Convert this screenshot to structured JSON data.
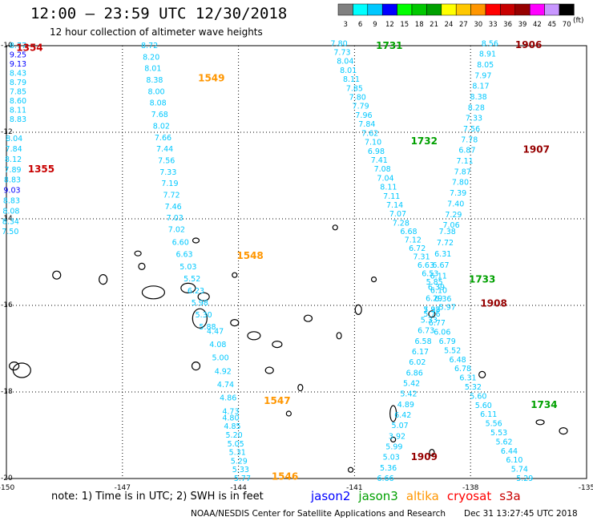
{
  "header": {
    "title": "12:00 – 23:59 UTC 12/30/2018",
    "subtitle": "12 hour collection of altimeter wave heights"
  },
  "color_scale": {
    "ticks": [
      "3",
      "6",
      "9",
      "12",
      "15",
      "18",
      "21",
      "24",
      "27",
      "30",
      "33",
      "36",
      "39",
      "42",
      "45",
      "70"
    ],
    "unit": "(ft)",
    "colors": [
      "#808080",
      "#00ffff",
      "#00c8ff",
      "#0000ff",
      "#00ff00",
      "#00c800",
      "#00a000",
      "#ffff00",
      "#ffc800",
      "#ff9600",
      "#ff0000",
      "#c80000",
      "#960000",
      "#ff00ff",
      "#c896ff",
      "#000000"
    ]
  },
  "map": {
    "lon_labels": [
      "-150",
      "-147",
      "-144",
      "-141",
      "-138",
      "-135"
    ],
    "lat_labels": [
      "-10",
      "-12",
      "-14",
      "-16",
      "-18",
      "-20"
    ],
    "lon_values": [
      -150,
      -147,
      -144,
      -141,
      -138,
      -135
    ],
    "lat_values": [
      -10,
      -12,
      -14,
      -16,
      -18,
      -20
    ]
  },
  "tracks": [
    {
      "satellite": "cryosat",
      "color": "#c80000",
      "time_label": "1354",
      "label_pos": [
        -149.4,
        -10.05
      ],
      "start": [
        -149.7,
        -10.0
      ],
      "end": [
        -149.7,
        -11.7
      ],
      "values": [
        "8.77",
        "9.25",
        "9.13",
        "8.43",
        "8.79",
        "7.85",
        "8.60",
        "8.11",
        "8.83"
      ],
      "value_colors": [
        "#00c8ff",
        "#0000ff",
        "#0000ff",
        "#00c8ff",
        "#00c8ff",
        "#00c8ff",
        "#00c8ff",
        "#00c8ff",
        "#00c8ff"
      ]
    },
    {
      "satellite": "cryosat",
      "color": "#c80000",
      "time_label": "1355",
      "label_pos": [
        -149.1,
        -12.85
      ],
      "start": [
        -149.8,
        -12.15
      ],
      "end": [
        -149.9,
        -14.3
      ],
      "values": [
        "8.04",
        "7.84",
        "8.12",
        "7.89",
        "8.83",
        "9.03",
        "8.83",
        "8.08",
        "8.34",
        "7.50"
      ],
      "value_colors": [
        "#00c8ff",
        "#00c8ff",
        "#00c8ff",
        "#00c8ff",
        "#00c8ff",
        "#0000ff",
        "#00c8ff",
        "#00c8ff",
        "#00c8ff",
        "#00c8ff"
      ]
    },
    {
      "satellite": "altika",
      "color": "#ff9600",
      "time_label": "1549",
      "label_pos": [
        -144.7,
        -10.75
      ],
      "start": [
        -146.3,
        -10.0
      ],
      "end": [
        -145.6,
        -14.25
      ],
      "values": [
        "8.72",
        "8.20",
        "8.01",
        "8.38",
        "8.00",
        "8.08",
        "7.68",
        "8.02",
        "7.66",
        "7.44",
        "7.56",
        "7.33",
        "7.19",
        "7.72",
        "7.46",
        "7.03",
        "7.02"
      ],
      "value_colors": []
    },
    {
      "satellite": "altika",
      "color": "#ff9600",
      "time_label": "1548",
      "label_pos": [
        -143.7,
        -14.85
      ],
      "start": [
        -145.5,
        -14.55
      ],
      "end": [
        -144.8,
        -16.5
      ],
      "values": [
        "6.60",
        "6.63",
        "5.03",
        "5.52",
        "6.23",
        "5.98",
        "5.30",
        "5.88"
      ],
      "value_colors": []
    },
    {
      "satellite": "altika",
      "color": "#ff9600",
      "time_label": "1547",
      "label_pos": [
        -143.0,
        -18.2
      ],
      "start": [
        -144.6,
        -16.6
      ],
      "end": [
        -144.2,
        -18.45
      ],
      "values": [
        "4.47",
        "4.08",
        "5.00",
        "4.92",
        "4.74",
        "4.86",
        "4.73"
      ],
      "value_colors": []
    },
    {
      "satellite": "altika",
      "color": "#ff9600",
      "time_label": "1546",
      "label_pos": [
        -142.8,
        -19.95
      ],
      "start": [
        -144.2,
        -18.6
      ],
      "end": [
        -143.9,
        -20.0
      ],
      "values": [
        "4.80",
        "4.85",
        "5.20",
        "5.05",
        "5.31",
        "5.29",
        "5.33",
        "5.77"
      ],
      "value_colors": []
    },
    {
      "satellite": "jason3",
      "color": "#00a000",
      "time_label": "1731",
      "label_pos": [
        -140.1,
        -10.0
      ],
      "start": [
        -141.4,
        -9.95
      ],
      "end": [
        -139.8,
        -14.1
      ],
      "values": [
        "7.80",
        "7.73",
        "8.04",
        "8.01",
        "8.11",
        "7.85",
        "7.80",
        "7.79",
        "7.96",
        "7.84",
        "7.62",
        "7.10",
        "6.98",
        "7.41",
        "7.08",
        "7.04",
        "8.11",
        "7.11",
        "7.14",
        "7.07",
        "7.28"
      ],
      "value_colors": []
    },
    {
      "satellite": "jason3",
      "color": "#00a000",
      "time_label": "1732",
      "label_pos": [
        -139.2,
        -12.2
      ],
      "start": null,
      "end": null,
      "values": [],
      "value_colors": []
    },
    {
      "satellite": "jason3",
      "color": "#00a000",
      "time_label": "1733",
      "label_pos": [
        -137.7,
        -15.4
      ],
      "start": [
        -139.6,
        -14.3
      ],
      "end": [
        -138.6,
        -16.05
      ],
      "values": [
        "6.68",
        "7.12",
        "6.72",
        "7.31",
        "6.63",
        "6.53",
        "5.85",
        "6.10",
        "6.36",
        "5.97"
      ],
      "value_colors": []
    },
    {
      "satellite": "jason3",
      "color": "#00a000",
      "time_label": "1734",
      "label_pos": [
        -136.1,
        -18.3
      ],
      "start": [
        -139.0,
        -16.1
      ],
      "end": [
        -140.2,
        -20.0
      ],
      "values": [
        "7.38",
        "5.33",
        "6.73",
        "6.58",
        "6.17",
        "6.02",
        "6.86",
        "5.42",
        "5.42",
        "4.89",
        "6.42",
        "5.07",
        "3.92",
        "5.99",
        "5.03",
        "5.36",
        "6.66"
      ],
      "value_colors": []
    },
    {
      "satellite": "cryosat",
      "color": "#960000",
      "time_label": "1906",
      "label_pos": [
        -136.5,
        -9.98
      ],
      "start": [
        -137.5,
        -9.95
      ],
      "end": [
        -138.5,
        -14.15
      ],
      "values": [
        "8.56",
        "8.91",
        "8.05",
        "7.97",
        "8.17",
        "8.38",
        "8.28",
        "7.33",
        "7.56",
        "7.78",
        "6.87",
        "7.11",
        "7.87",
        "7.80",
        "7.39",
        "7.40",
        "7.29",
        "7.06"
      ],
      "value_colors": []
    },
    {
      "satellite": "cryosat",
      "color": "#960000",
      "time_label": "1907",
      "label_pos": [
        -136.3,
        -12.4
      ],
      "start": null,
      "end": null,
      "values": [],
      "value_colors": []
    },
    {
      "satellite": "cryosat",
      "color": "#960000",
      "time_label": "1908",
      "label_pos": [
        -137.4,
        -15.95
      ],
      "start": [
        -138.6,
        -14.3
      ],
      "end": [
        -139.0,
        -16.1
      ],
      "values": [
        "7.38",
        "7.72",
        "6.31",
        "6.67",
        "6.11",
        "6.39",
        "6.29",
        "5.97"
      ],
      "value_colors": []
    },
    {
      "satellite": "cryosat",
      "color": "#960000",
      "time_label": "1909",
      "label_pos": [
        -139.2,
        -19.5
      ],
      "start": [
        -139.0,
        -16.2
      ],
      "end": [
        -136.6,
        -20.0
      ],
      "values": [
        "5.76",
        "6.77",
        "6.06",
        "6.79",
        "5.52",
        "6.48",
        "6.78",
        "6.31",
        "5.32",
        "5.60",
        "5.60",
        "6.11",
        "5.56",
        "5.53",
        "5.62",
        "6.44",
        "6.10",
        "5.74",
        "5.29"
      ],
      "value_colors": []
    }
  ],
  "legend": {
    "note": "note: 1) Time is in UTC; 2) SWH is in feet",
    "items": [
      {
        "label": "jason2",
        "color": "#0000ff"
      },
      {
        "label": "jason3",
        "color": "#00a000"
      },
      {
        "label": "altika",
        "color": "#ff9600"
      },
      {
        "label": "cryosat",
        "color": "#ff0000"
      },
      {
        "label": "s3a",
        "color": "#c80000"
      }
    ]
  },
  "footer": {
    "source": "NOAA/NESDIS Center for Satellite Applications and Research",
    "timestamp": "Dec 31 13:27:45 UTC 2018"
  }
}
